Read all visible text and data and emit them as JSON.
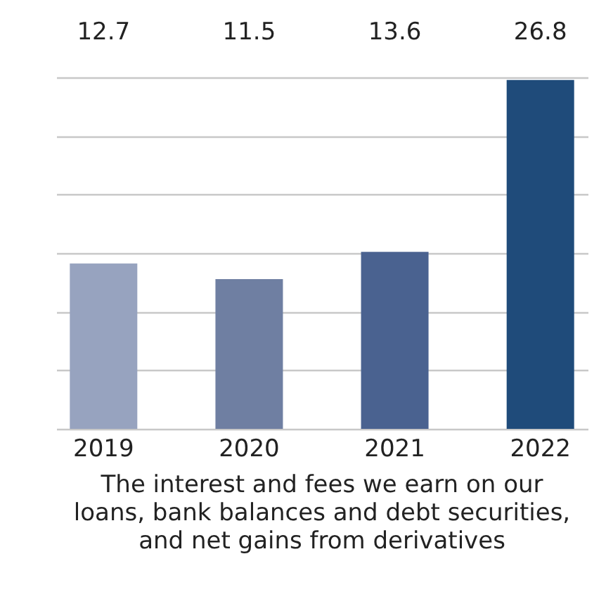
{
  "chart_data": {
    "type": "bar",
    "title": "The interest and fees we earn on our loans, bank balances and debt securities, and net gains from derivatives",
    "categories": [
      "2019",
      "2020",
      "2021",
      "2022"
    ],
    "values": [
      12.7,
      11.5,
      13.6,
      26.8
    ],
    "colors": [
      "#97a3bf",
      "#6f7fa2",
      "#4a6290",
      "#1f4b7a"
    ],
    "data_labels": true,
    "ylim": [
      0,
      27
    ],
    "yticks": [
      {
        "value": 0,
        "label": null
      },
      {
        "value": 4.5,
        "label": null
      },
      {
        "value": 9,
        "label": null
      },
      {
        "value": 13.5,
        "label": null
      },
      {
        "value": 18,
        "label": null
      },
      {
        "value": 22.5,
        "label": null
      },
      {
        "value": 27,
        "label": null
      }
    ],
    "grid": "y",
    "tick_labels": "x"
  }
}
